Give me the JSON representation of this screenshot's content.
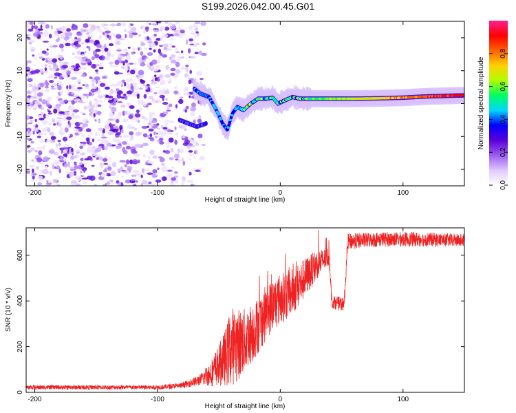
{
  "title": "S199.2026.042.00.45.G01",
  "chart_data": [
    {
      "type": "heatmap",
      "xlabel": "Height of straight line (km)",
      "ylabel": "Frequency (Hz)",
      "xlim": [
        -207,
        150
      ],
      "ylim": [
        -25,
        25
      ],
      "xticks": [
        -200,
        -100,
        0,
        100
      ],
      "xtick_labels": [
        "-200",
        "-100",
        "0",
        "100"
      ],
      "yticks": [
        -20,
        -10,
        0,
        10,
        20
      ],
      "ytick_labels": [
        "-20",
        "-10",
        "0",
        "10",
        "20"
      ],
      "colorbar": {
        "label": "Normalized spectral amplitude",
        "range": [
          0,
          1
        ],
        "ticks": [
          0.0,
          0.2,
          0.4,
          0.6,
          0.8
        ],
        "tick_labels": [
          "0.0",
          "0.2",
          "0.4",
          "0.6",
          "0.8"
        ],
        "colors": [
          "#ffffff",
          "#e0c8ff",
          "#9a5cf0",
          "#5a00d8",
          "#0000ff",
          "#00d8ff",
          "#00ff60",
          "#b0ff00",
          "#ffd000",
          "#ff6000",
          "#ff0000",
          "#ff2090"
        ]
      },
      "ridge": [
        {
          "x": -70,
          "y": 4.5
        },
        {
          "x": -65,
          "y": 3
        },
        {
          "x": -58,
          "y": 2
        },
        {
          "x": -52,
          "y": -2
        },
        {
          "x": -47,
          "y": -6
        },
        {
          "x": -43,
          "y": -8
        },
        {
          "x": -39,
          "y": -3
        },
        {
          "x": -35,
          "y": -1
        },
        {
          "x": -30,
          "y": -2
        },
        {
          "x": -24,
          "y": 0
        },
        {
          "x": -18,
          "y": 1.5
        },
        {
          "x": -12,
          "y": 1.5
        },
        {
          "x": -6,
          "y": 1.8
        },
        {
          "x": -2,
          "y": 0
        },
        {
          "x": 4,
          "y": 1
        },
        {
          "x": 10,
          "y": 2
        },
        {
          "x": 16,
          "y": 1.5
        },
        {
          "x": 22,
          "y": 1.5
        },
        {
          "x": 40,
          "y": 1.5
        },
        {
          "x": 60,
          "y": 1.5
        },
        {
          "x": 80,
          "y": 1.6
        },
        {
          "x": 100,
          "y": 1.8
        },
        {
          "x": 120,
          "y": 2.2
        },
        {
          "x": 150,
          "y": 2.5
        }
      ],
      "side_branch": [
        {
          "x": -82,
          "y": -5
        },
        {
          "x": -75,
          "y": -6
        },
        {
          "x": -68,
          "y": -7
        },
        {
          "x": -60,
          "y": -6
        }
      ],
      "noise_region": {
        "x_from": -207,
        "x_to": -70
      }
    },
    {
      "type": "line",
      "xlabel": "Height of straight line (km)",
      "ylabel": "SNR (10 * v/v)",
      "xlim": [
        -207,
        150
      ],
      "ylim": [
        0,
        720
      ],
      "xticks": [
        -200,
        -100,
        0,
        100
      ],
      "xtick_labels": [
        "-200",
        "-100",
        "0",
        "100"
      ],
      "yticks": [
        0,
        200,
        400,
        600
      ],
      "ytick_labels": [
        "0",
        "200",
        "400",
        "600"
      ],
      "color": "#ee2222",
      "envelope": [
        {
          "x": -207,
          "y": 22,
          "spread": 12
        },
        {
          "x": -100,
          "y": 22,
          "spread": 12
        },
        {
          "x": -80,
          "y": 30,
          "spread": 15
        },
        {
          "x": -65,
          "y": 55,
          "spread": 30
        },
        {
          "x": -55,
          "y": 90,
          "spread": 80
        },
        {
          "x": -45,
          "y": 150,
          "spread": 150
        },
        {
          "x": -40,
          "y": 200,
          "spread": 220
        },
        {
          "x": -30,
          "y": 220,
          "spread": 180
        },
        {
          "x": -20,
          "y": 280,
          "spread": 160
        },
        {
          "x": -10,
          "y": 360,
          "spread": 150
        },
        {
          "x": 0,
          "y": 410,
          "spread": 140
        },
        {
          "x": 10,
          "y": 440,
          "spread": 130
        },
        {
          "x": 20,
          "y": 500,
          "spread": 110
        },
        {
          "x": 30,
          "y": 560,
          "spread": 80
        },
        {
          "x": 40,
          "y": 595,
          "spread": 50
        },
        {
          "x": 42,
          "y": 395,
          "spread": 35
        },
        {
          "x": 52,
          "y": 385,
          "spread": 40
        },
        {
          "x": 55,
          "y": 660,
          "spread": 45
        },
        {
          "x": 80,
          "y": 670,
          "spread": 40
        },
        {
          "x": 110,
          "y": 670,
          "spread": 40
        },
        {
          "x": 150,
          "y": 665,
          "spread": 35
        }
      ]
    }
  ]
}
